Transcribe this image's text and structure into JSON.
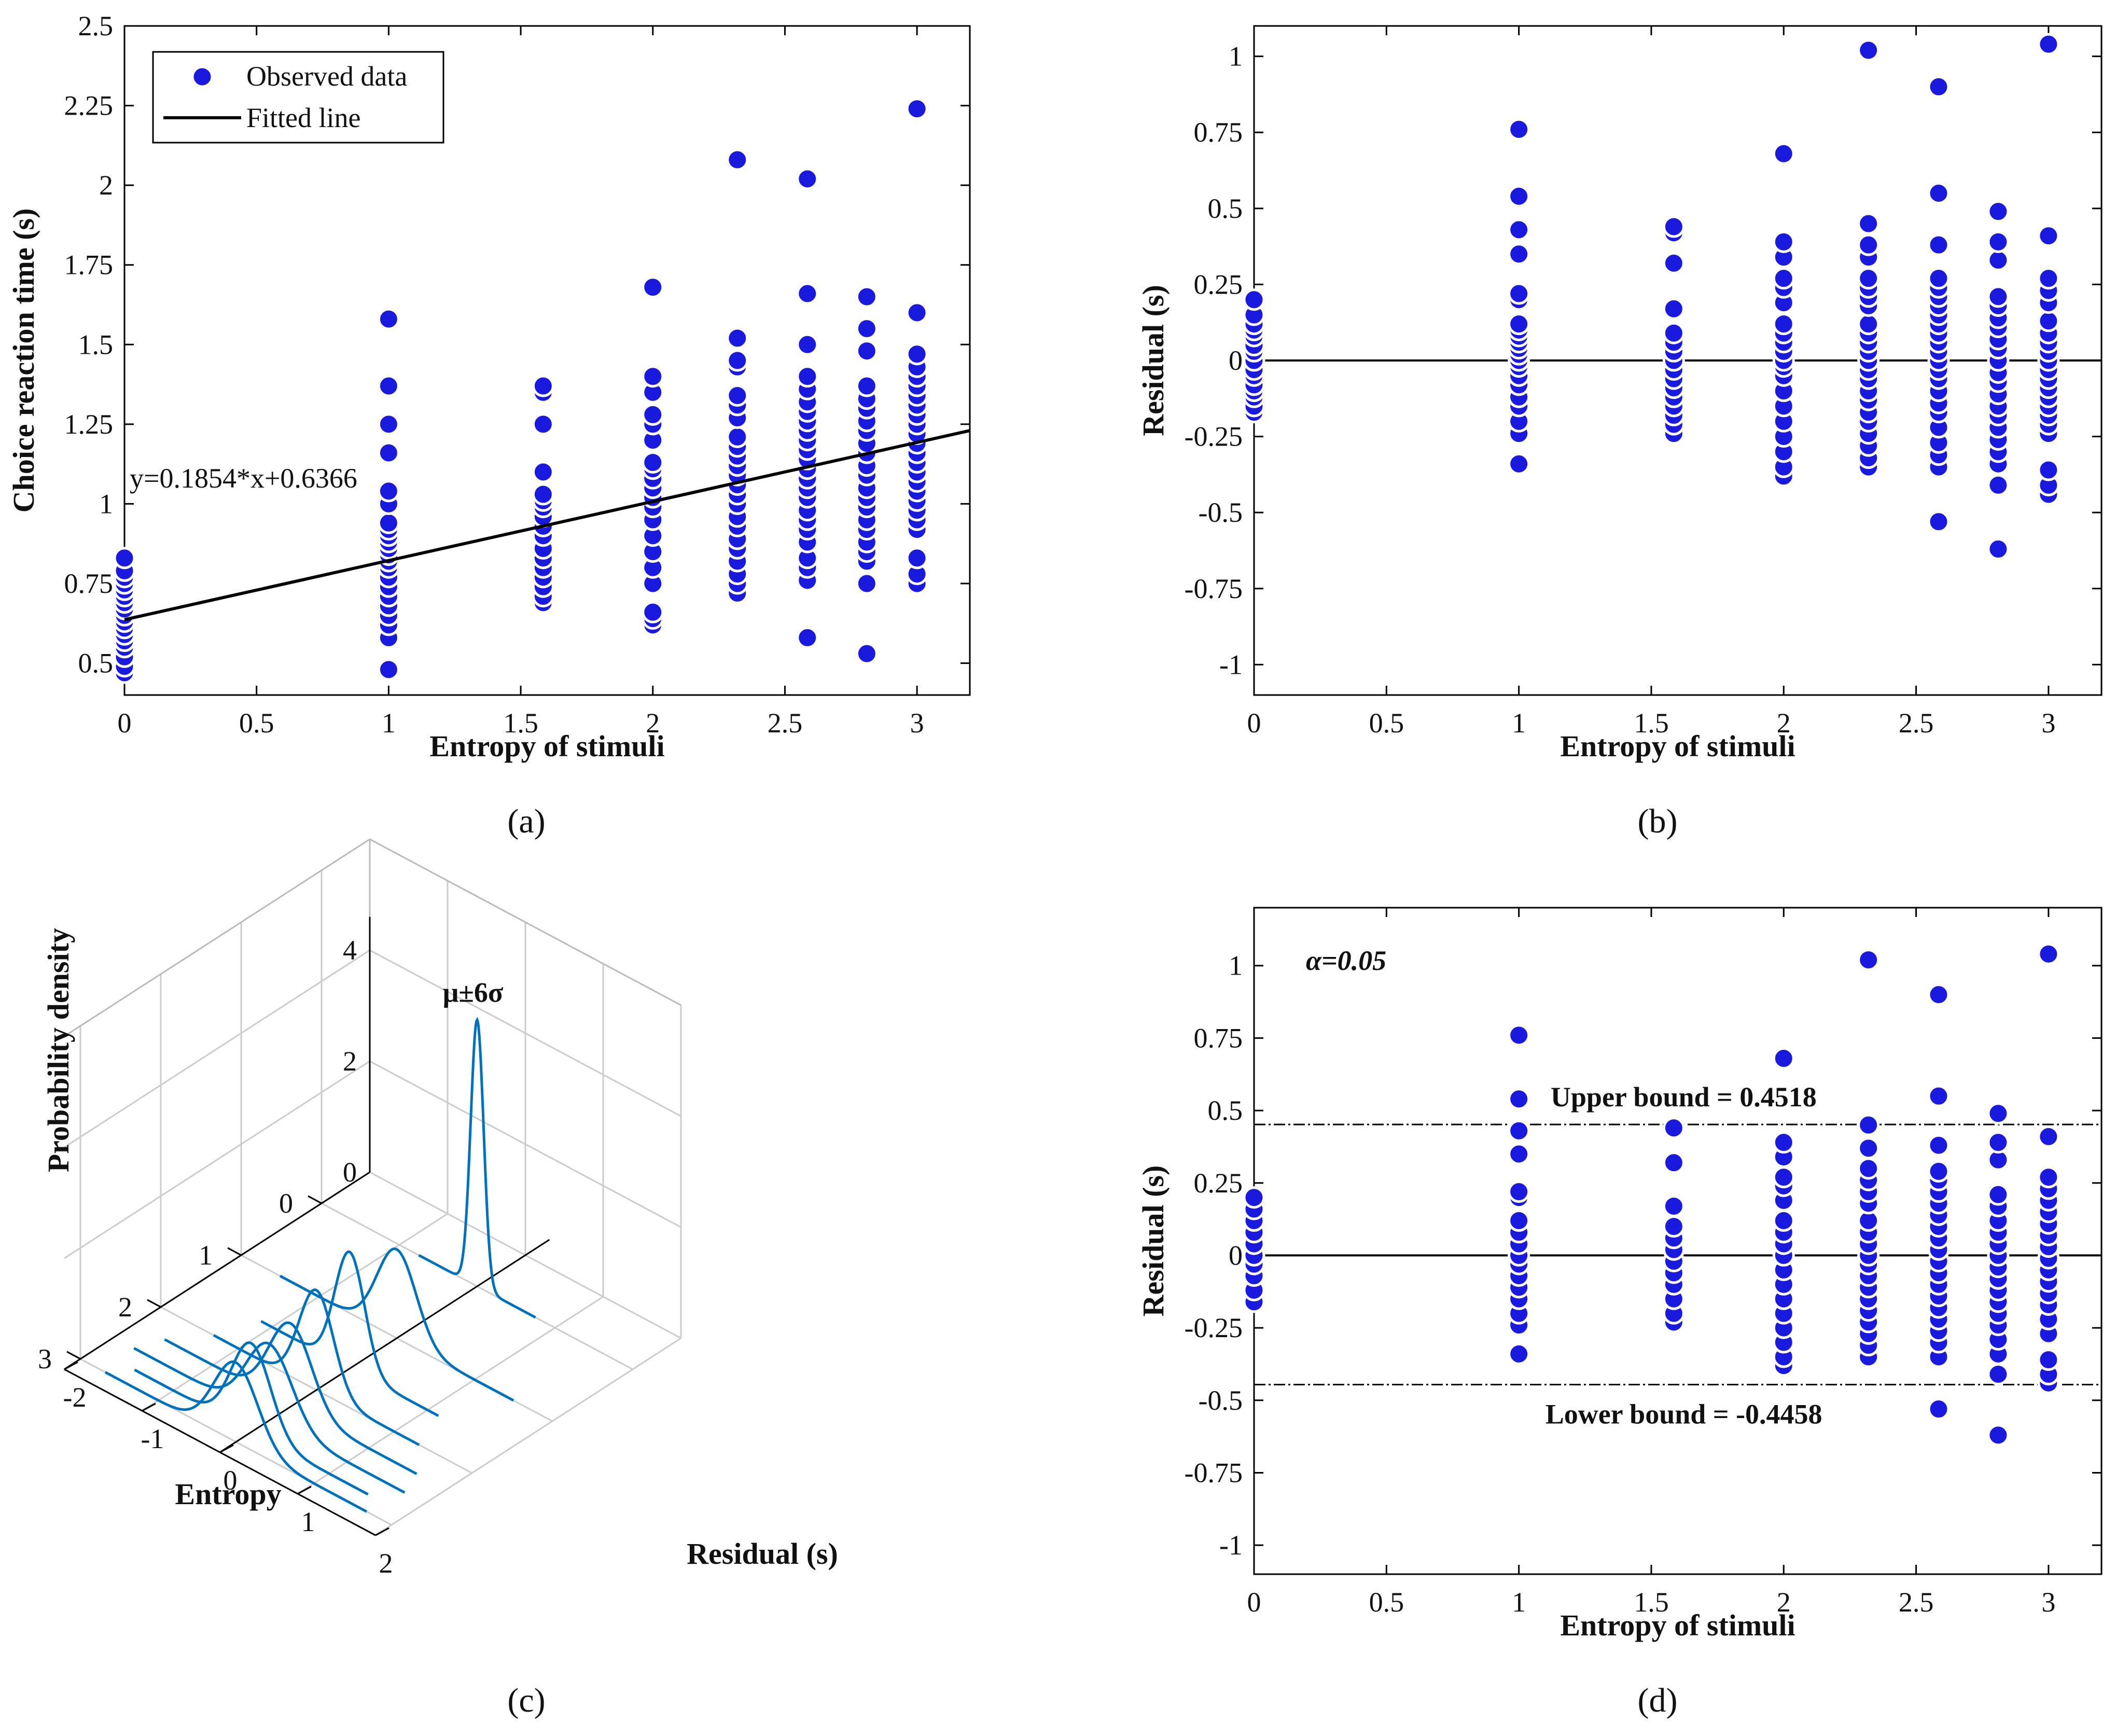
{
  "colors": {
    "points": "#1a1adf",
    "point_edge": "#ffffff",
    "line": "#000000",
    "curves": "#0072bd",
    "grid": "#cccccc"
  },
  "labels": {
    "a": "(a)",
    "b": "(b)",
    "c": "(c)",
    "d": "(d)"
  },
  "chart_data": [
    {
      "id": "a",
      "type": "scatter",
      "xlabel": "Entropy of stimuli",
      "ylabel": "Choice reaction time (s)",
      "xlim": [
        0,
        3.2
      ],
      "ylim": [
        0.4,
        2.5
      ],
      "xticks": [
        0,
        0.5,
        1,
        1.5,
        2,
        2.5,
        3
      ],
      "xtick_labels": [
        "0",
        "0.5",
        "1",
        "1.5",
        "2",
        "2.5",
        "3"
      ],
      "yticks": [
        0.5,
        0.75,
        1,
        1.25,
        1.5,
        1.75,
        2,
        2.25,
        2.5
      ],
      "ytick_labels": [
        "0.5",
        "0.75",
        "1",
        "1.25",
        "1.5",
        "1.75",
        "2",
        "2.25",
        "2.5"
      ],
      "legend": [
        "Observed data",
        "Fitted line"
      ],
      "fit": {
        "slope": 0.1854,
        "intercept": 0.6366,
        "label": "y=0.1854*x+0.6366"
      },
      "series": [
        {
          "x": 0,
          "y": [
            0.47,
            0.49,
            0.52,
            0.55,
            0.57,
            0.59,
            0.61,
            0.63,
            0.65,
            0.67,
            0.69,
            0.71,
            0.73,
            0.75,
            0.77,
            0.79,
            0.83
          ]
        },
        {
          "x": 1,
          "y": [
            0.48,
            0.58,
            0.62,
            0.65,
            0.68,
            0.71,
            0.74,
            0.77,
            0.8,
            0.82,
            0.84,
            0.86,
            0.88,
            0.9,
            0.92,
            0.94,
            1.0,
            1.04,
            1.16,
            1.25,
            1.37,
            1.58
          ]
        },
        {
          "x": 1.585,
          "y": [
            0.69,
            0.71,
            0.74,
            0.77,
            0.8,
            0.83,
            0.86,
            0.9,
            0.93,
            0.96,
            0.99,
            1.01,
            1.03,
            1.1,
            1.25,
            1.35,
            1.37
          ]
        },
        {
          "x": 2,
          "y": [
            0.62,
            0.64,
            0.66,
            0.75,
            0.8,
            0.85,
            0.9,
            0.95,
            0.99,
            1.02,
            1.05,
            1.08,
            1.11,
            1.13,
            1.2,
            1.25,
            1.28,
            1.35,
            1.4,
            1.68
          ]
        },
        {
          "x": 2.32,
          "y": [
            0.72,
            0.75,
            0.78,
            0.82,
            0.86,
            0.89,
            0.93,
            0.96,
            1.0,
            1.03,
            1.06,
            1.09,
            1.12,
            1.15,
            1.18,
            1.21,
            1.27,
            1.31,
            1.34,
            1.43,
            1.45,
            1.52,
            2.08
          ]
        },
        {
          "x": 2.585,
          "y": [
            0.58,
            0.76,
            0.8,
            0.83,
            0.88,
            0.92,
            0.95,
            0.98,
            1.02,
            1.05,
            1.08,
            1.11,
            1.14,
            1.17,
            1.2,
            1.23,
            1.26,
            1.29,
            1.32,
            1.36,
            1.4,
            1.5,
            1.66,
            2.02
          ]
        },
        {
          "x": 2.81,
          "y": [
            0.53,
            0.75,
            0.82,
            0.85,
            0.88,
            0.92,
            0.95,
            0.99,
            1.02,
            1.05,
            1.09,
            1.12,
            1.16,
            1.19,
            1.23,
            1.26,
            1.3,
            1.33,
            1.37,
            1.48,
            1.55,
            1.65
          ]
        },
        {
          "x": 3,
          "y": [
            0.75,
            0.78,
            0.83,
            0.92,
            0.95,
            0.98,
            1.01,
            1.04,
            1.07,
            1.1,
            1.13,
            1.16,
            1.19,
            1.22,
            1.25,
            1.28,
            1.31,
            1.34,
            1.37,
            1.4,
            1.43,
            1.47,
            1.6,
            2.24
          ]
        }
      ]
    },
    {
      "id": "b",
      "type": "scatter",
      "xlabel": "Entropy of stimuli",
      "ylabel": "Residual (s)",
      "xlim": [
        0,
        3.2
      ],
      "ylim": [
        -1.1,
        1.1
      ],
      "xticks": [
        0,
        0.5,
        1,
        1.5,
        2,
        2.5,
        3
      ],
      "xtick_labels": [
        "0",
        "0.5",
        "1",
        "1.5",
        "2",
        "2.5",
        "3"
      ],
      "yticks": [
        -1,
        -0.75,
        -0.5,
        -0.25,
        0,
        0.25,
        0.5,
        0.75,
        1
      ],
      "ytick_labels": [
        "-1",
        "-0.75",
        "-0.5",
        "-0.25",
        "0",
        "0.25",
        "0.5",
        "0.75",
        "1"
      ],
      "reference_line": 0,
      "series": [
        {
          "x": 0,
          "y": [
            -0.17,
            -0.15,
            -0.12,
            -0.1,
            -0.08,
            -0.05,
            -0.03,
            0,
            0.03,
            0.05,
            0.08,
            0.1,
            0.12,
            0.15,
            0.2
          ]
        },
        {
          "x": 1,
          "y": [
            -0.34,
            -0.24,
            -0.2,
            -0.15,
            -0.12,
            -0.08,
            -0.05,
            -0.02,
            0,
            0.02,
            0.04,
            0.06,
            0.08,
            0.1,
            0.12,
            0.2,
            0.22,
            0.35,
            0.43,
            0.54,
            0.76
          ]
        },
        {
          "x": 1.585,
          "y": [
            -0.24,
            -0.21,
            -0.18,
            -0.15,
            -0.12,
            -0.09,
            -0.06,
            -0.03,
            0,
            0.03,
            0.06,
            0.09,
            0.17,
            0.32,
            0.42,
            0.44
          ]
        },
        {
          "x": 2,
          "y": [
            -0.38,
            -0.35,
            -0.3,
            -0.25,
            -0.2,
            -0.15,
            -0.1,
            -0.05,
            -0.02,
            0,
            0.03,
            0.06,
            0.09,
            0.12,
            0.19,
            0.24,
            0.27,
            0.34,
            0.39,
            0.68
          ]
        },
        {
          "x": 2.32,
          "y": [
            -0.35,
            -0.32,
            -0.28,
            -0.24,
            -0.2,
            -0.17,
            -0.13,
            -0.1,
            -0.06,
            -0.03,
            0,
            0.03,
            0.06,
            0.09,
            0.12,
            0.18,
            0.21,
            0.24,
            0.27,
            0.34,
            0.38,
            0.45,
            1.02
          ]
        },
        {
          "x": 2.585,
          "y": [
            -0.53,
            -0.35,
            -0.31,
            -0.27,
            -0.22,
            -0.17,
            -0.14,
            -0.1,
            -0.06,
            -0.03,
            0,
            0.03,
            0.06,
            0.09,
            0.12,
            0.15,
            0.18,
            0.21,
            0.24,
            0.27,
            0.38,
            0.55,
            0.9
          ]
        },
        {
          "x": 2.81,
          "y": [
            -0.62,
            -0.41,
            -0.34,
            -0.3,
            -0.26,
            -0.22,
            -0.18,
            -0.15,
            -0.11,
            -0.07,
            -0.04,
            0,
            0.04,
            0.07,
            0.11,
            0.14,
            0.18,
            0.21,
            0.33,
            0.39,
            0.49
          ]
        },
        {
          "x": 3,
          "y": [
            -0.44,
            -0.41,
            -0.36,
            -0.24,
            -0.21,
            -0.18,
            -0.15,
            -0.12,
            -0.09,
            -0.06,
            -0.03,
            0,
            0.03,
            0.06,
            0.09,
            0.13,
            0.19,
            0.23,
            0.27,
            0.41,
            1.04
          ]
        }
      ]
    },
    {
      "id": "c",
      "type": "line",
      "zlabel": "Probability density",
      "ylabel": "Entropy",
      "xlabel": "Residual (s)",
      "annotation": "μ±6σ",
      "zticks": [
        0,
        2,
        4
      ],
      "ztick_labels": [
        "0",
        "2",
        "4"
      ],
      "entropy_ticks": [
        0,
        1,
        2,
        3
      ],
      "entropy_tick_labels": [
        "0",
        "1",
        "2",
        "3"
      ],
      "residual_ticks": [
        -2,
        -1,
        0,
        1,
        2
      ],
      "residual_tick_labels": [
        "-2",
        "-1",
        "0",
        "1",
        "2"
      ],
      "curves": [
        {
          "entropy": 0,
          "sigma": 0.083,
          "peak": 4.8
        },
        {
          "entropy": 1,
          "sigma": 0.25,
          "peak": 1.6
        },
        {
          "entropy": 1.585,
          "sigma": 0.19,
          "peak": 2.1
        },
        {
          "entropy": 2,
          "sigma": 0.22,
          "peak": 1.8
        },
        {
          "entropy": 2.32,
          "sigma": 0.27,
          "peak": 1.5
        },
        {
          "entropy": 2.585,
          "sigma": 0.29,
          "peak": 1.38
        },
        {
          "entropy": 2.81,
          "sigma": 0.25,
          "peak": 1.6
        },
        {
          "entropy": 3,
          "sigma": 0.28,
          "peak": 1.43
        }
      ]
    },
    {
      "id": "d",
      "type": "scatter",
      "xlabel": "Entropy of stimuli",
      "ylabel": "Residual (s)",
      "xlim": [
        0,
        3.2
      ],
      "ylim": [
        -1.1,
        1.2
      ],
      "xticks": [
        0,
        0.5,
        1,
        1.5,
        2,
        2.5,
        3
      ],
      "xtick_labels": [
        "0",
        "0.5",
        "1",
        "1.5",
        "2",
        "2.5",
        "3"
      ],
      "yticks": [
        -1,
        -0.75,
        -0.5,
        -0.25,
        0,
        0.25,
        0.5,
        0.75,
        1
      ],
      "ytick_labels": [
        "-1",
        "-0.75",
        "-0.5",
        "-0.25",
        "0",
        "0.25",
        "0.5",
        "0.75",
        "1"
      ],
      "alpha_label": "α=0.05",
      "upper_bound": {
        "value": 0.4518,
        "label": "Upper bound = 0.4518"
      },
      "lower_bound": {
        "value": -0.4458,
        "label": "Lower bound = -0.4458"
      },
      "reference_line": 0,
      "series": [
        {
          "x": 0,
          "y": [
            -0.16,
            -0.12,
            -0.07,
            -0.03,
            0,
            0.04,
            0.08,
            0.12,
            0.16,
            0.2
          ]
        },
        {
          "x": 1,
          "y": [
            -0.34,
            -0.24,
            -0.2,
            -0.15,
            -0.11,
            -0.07,
            -0.03,
            0,
            0.04,
            0.08,
            0.12,
            0.2,
            0.22,
            0.35,
            0.43,
            0.54,
            0.76
          ]
        },
        {
          "x": 1.585,
          "y": [
            -0.23,
            -0.2,
            -0.15,
            -0.1,
            -0.06,
            -0.02,
            0.02,
            0.06,
            0.1,
            0.17,
            0.32,
            0.44
          ]
        },
        {
          "x": 2,
          "y": [
            -0.38,
            -0.35,
            -0.3,
            -0.25,
            -0.2,
            -0.15,
            -0.1,
            -0.05,
            0,
            0.04,
            0.08,
            0.12,
            0.19,
            0.24,
            0.27,
            0.34,
            0.39,
            0.68
          ]
        },
        {
          "x": 2.32,
          "y": [
            -0.35,
            -0.31,
            -0.27,
            -0.23,
            -0.19,
            -0.15,
            -0.11,
            -0.07,
            -0.03,
            0,
            0.04,
            0.08,
            0.12,
            0.18,
            0.22,
            0.26,
            0.3,
            0.37,
            0.45,
            1.02
          ]
        },
        {
          "x": 2.585,
          "y": [
            -0.53,
            -0.35,
            -0.3,
            -0.26,
            -0.22,
            -0.18,
            -0.14,
            -0.1,
            -0.06,
            -0.02,
            0.02,
            0.06,
            0.1,
            0.14,
            0.18,
            0.22,
            0.26,
            0.29,
            0.38,
            0.55,
            0.9
          ]
        },
        {
          "x": 2.81,
          "y": [
            -0.62,
            -0.41,
            -0.34,
            -0.29,
            -0.24,
            -0.2,
            -0.16,
            -0.12,
            -0.08,
            -0.04,
            0,
            0.04,
            0.08,
            0.12,
            0.17,
            0.21,
            0.33,
            0.39,
            0.49
          ]
        },
        {
          "x": 3,
          "y": [
            -0.44,
            -0.41,
            -0.36,
            -0.27,
            -0.22,
            -0.17,
            -0.13,
            -0.09,
            -0.05,
            -0.01,
            0.03,
            0.07,
            0.11,
            0.15,
            0.19,
            0.23,
            0.27,
            0.41,
            1.04
          ]
        }
      ]
    }
  ]
}
